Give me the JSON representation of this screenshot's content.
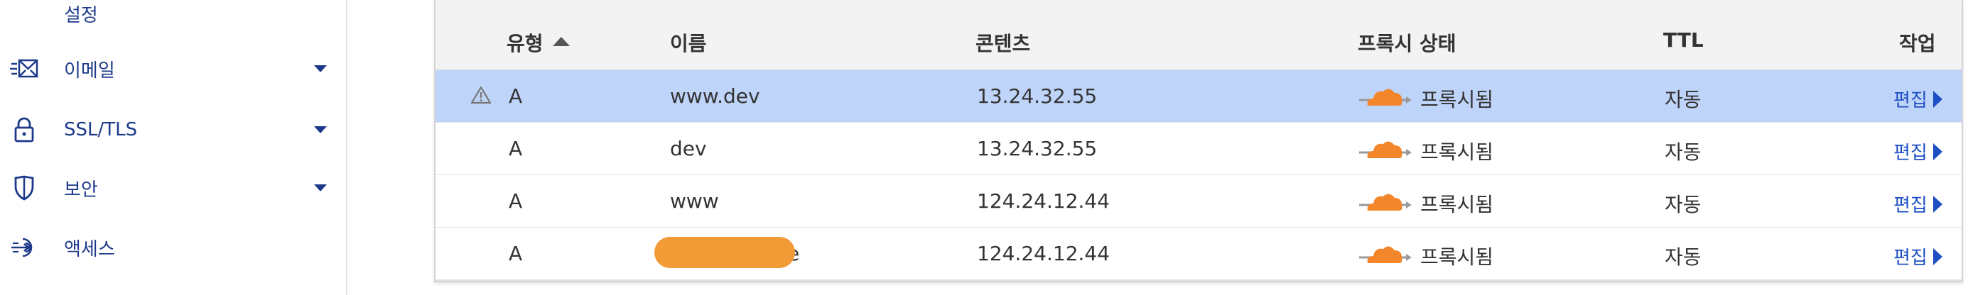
{
  "sidebar": {
    "items": [
      {
        "label": "설정",
        "icon": "",
        "has_caret": false
      },
      {
        "label": "이메일",
        "icon": "email-icon",
        "has_caret": true
      },
      {
        "label": "SSL/TLS",
        "icon": "lock-icon",
        "has_caret": true
      },
      {
        "label": "보안",
        "icon": "shield-icon",
        "has_caret": true
      },
      {
        "label": "액세스",
        "icon": "access-icon",
        "has_caret": false
      }
    ]
  },
  "table": {
    "headers": {
      "type": "유형",
      "name": "이름",
      "content": "콘텐츠",
      "proxy": "프록시 상태",
      "ttl": "TTL",
      "action": "작업"
    },
    "sort": {
      "column": "type",
      "direction": "ascending"
    },
    "rows": [
      {
        "warning": true,
        "type": "A",
        "name": "www.dev",
        "content": "13.24.32.55",
        "proxy_status": "프록시됨",
        "ttl": "자동",
        "action": "편집",
        "selected": true
      },
      {
        "warning": false,
        "type": "A",
        "name": "dev",
        "content": "13.24.32.55",
        "proxy_status": "프록시됨",
        "ttl": "자동",
        "action": "편집",
        "selected": false
      },
      {
        "warning": false,
        "type": "A",
        "name": "www",
        "content": "124.24.12.44",
        "proxy_status": "프록시됨",
        "ttl": "자동",
        "action": "편집",
        "selected": false
      },
      {
        "warning": false,
        "type": "A",
        "name": "e",
        "name_redacted": true,
        "content": "124.24.12.44",
        "proxy_status": "프록시됨",
        "ttl": "자동",
        "action": "편집",
        "selected": false
      }
    ]
  },
  "colors": {
    "accent": "#1d4fc4",
    "nav_text": "#1d3a8a",
    "selected_row": "#bfd4f9",
    "cloud": "#f3862b",
    "redaction": "#f29a35"
  }
}
